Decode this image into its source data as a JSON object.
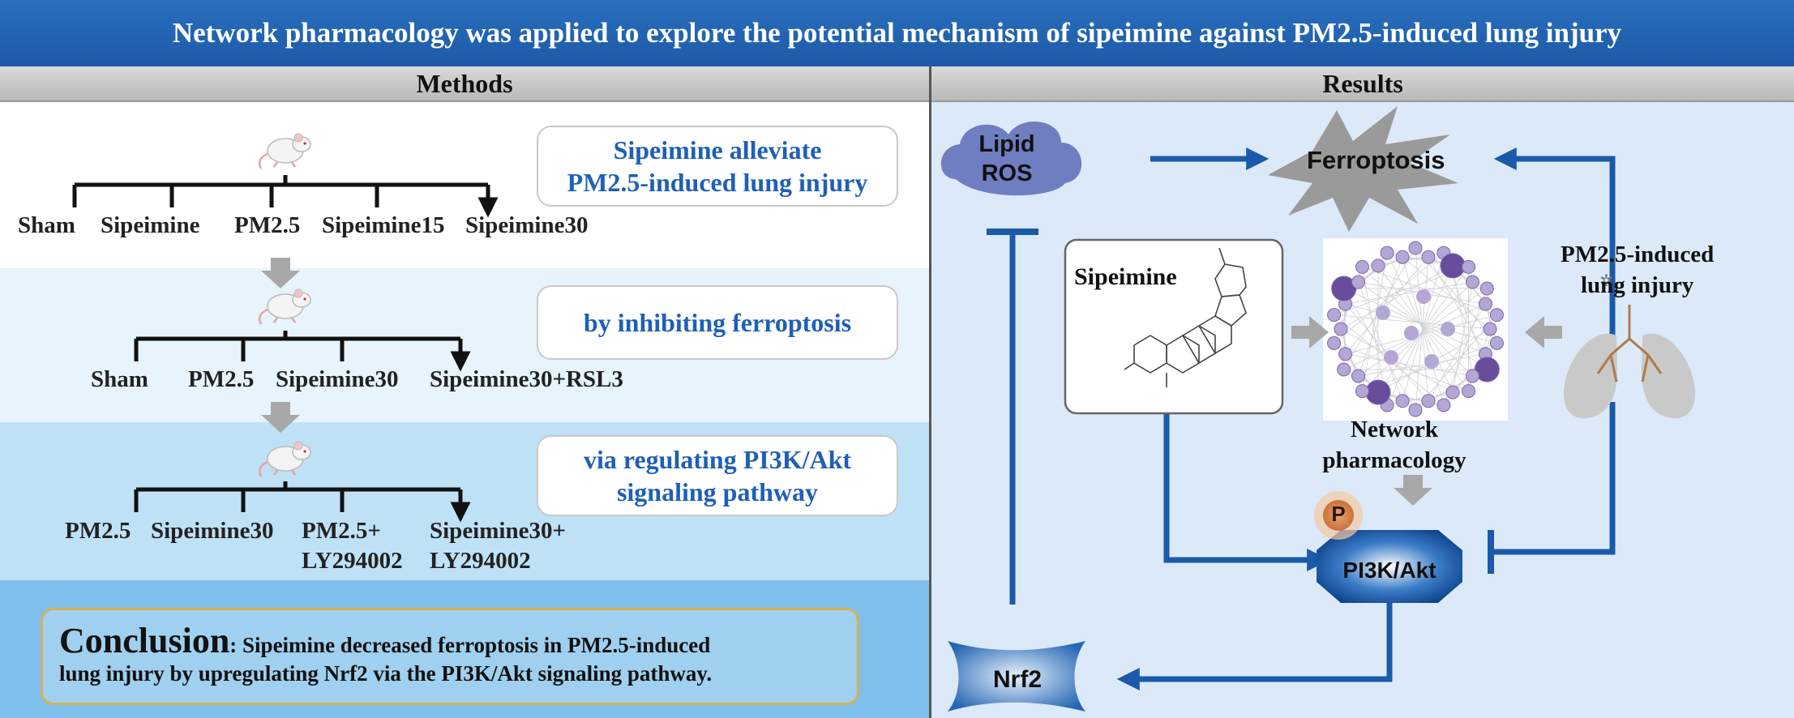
{
  "banner": {
    "title": "Network pharmacology was applied to explore the potential mechanism of sipeimine against PM2.5-induced lung injury"
  },
  "methods": {
    "header": "Methods",
    "step1": {
      "box_line1": "Sipeimine alleviate",
      "box_line2": "PM2.5-induced lung injury",
      "groups": [
        "Sham",
        "Sipeimine",
        "PM2.5",
        "Sipeimine15",
        "Sipeimine30"
      ]
    },
    "step2": {
      "box": "by inhibiting ferroptosis",
      "groups": [
        "Sham",
        "PM2.5",
        "Sipeimine30",
        "Sipeimine30+RSL3"
      ]
    },
    "step3": {
      "box_line1": "via regulating PI3K/Akt",
      "box_line2": "signaling pathway",
      "groups": [
        "PM2.5",
        "Sipeimine30",
        "PM2.5+",
        "Sipeimine30+"
      ],
      "groups_line2": [
        "LY294002",
        "LY294002"
      ]
    },
    "conclusion": {
      "heading": "Conclusion",
      "text_line1": ": Sipeimine decreased ferroptosis in PM2.5-induced",
      "text_line2": "lung injury by upregulating Nrf2 via the PI3K/Akt signaling pathway."
    }
  },
  "results": {
    "header": "Results",
    "lipid_ros_line1": "Lipid",
    "lipid_ros_line2": "ROS",
    "ferroptosis": "Ferroptosis",
    "pm25_line1": "PM2.5-induced",
    "pm25_line2": "lung injury",
    "sipeimine": "Sipeimine",
    "network_line1": "Network",
    "network_line2": "pharmacology",
    "p_badge": "P",
    "pi3k": "PI3K/Akt",
    "nrf2": "Nrf2"
  },
  "colors": {
    "banner": "#1c5aa6",
    "arrow": "#1a5aa8",
    "box_text": "#1e5fb8",
    "conclusion_border": "#d4b25a",
    "results_bg": "#dbe9f8",
    "cloud": "#6f7ec0",
    "network_node": "#b4a7d6"
  }
}
